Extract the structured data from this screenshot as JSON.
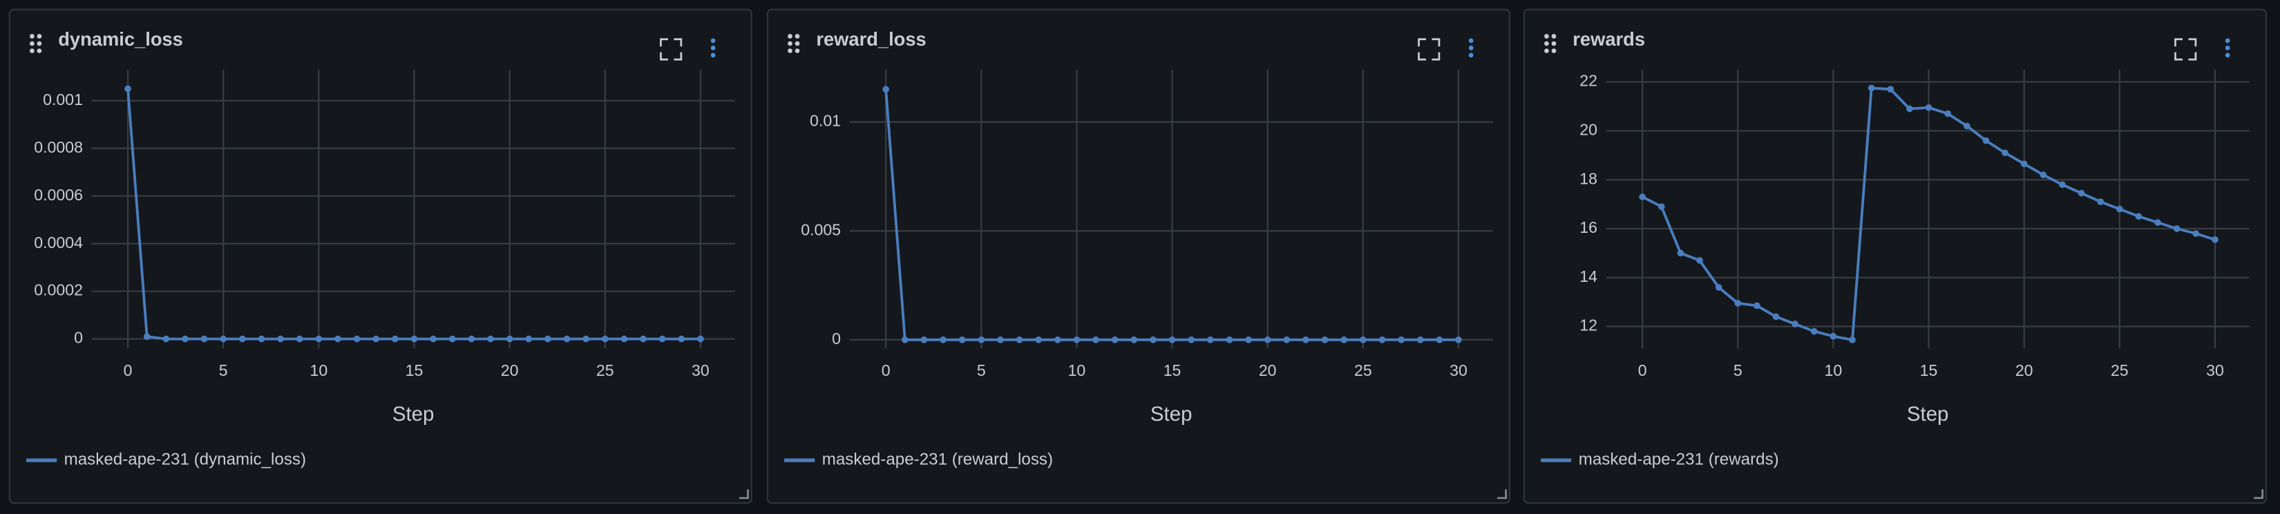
{
  "chart_data": [
    {
      "type": "line",
      "title": "dynamic_loss",
      "x_label": "Step",
      "x": [
        0,
        1,
        2,
        3,
        4,
        5,
        6,
        7,
        8,
        9,
        10,
        11,
        12,
        13,
        14,
        15,
        16,
        17,
        18,
        19,
        20,
        21,
        22,
        23,
        24,
        25,
        26,
        27,
        28,
        29,
        30
      ],
      "series": [
        {
          "name": "masked-ape-231 (dynamic_loss)",
          "color": "#4a7ebf",
          "values": [
            0.00105,
            1e-05,
            0,
            0,
            0,
            0,
            0,
            0,
            0,
            0,
            0,
            0,
            0,
            0,
            0,
            0,
            0,
            0,
            0,
            0,
            0,
            0,
            0,
            0,
            0,
            0,
            0,
            0,
            0,
            0,
            0
          ]
        }
      ],
      "xlim": [
        -1.9,
        31.8
      ],
      "ylim": [
        -4e-05,
        0.00113
      ],
      "xticks": [
        0,
        5,
        10,
        15,
        20,
        25,
        30
      ],
      "yticks": [
        0,
        0.0002,
        0.0004,
        0.0006,
        0.0008,
        0.001
      ],
      "grid": true
    },
    {
      "type": "line",
      "title": "reward_loss",
      "x_label": "Step",
      "x": [
        0,
        1,
        2,
        3,
        4,
        5,
        6,
        7,
        8,
        9,
        10,
        11,
        12,
        13,
        14,
        15,
        16,
        17,
        18,
        19,
        20,
        21,
        22,
        23,
        24,
        25,
        26,
        27,
        28,
        29,
        30
      ],
      "series": [
        {
          "name": "masked-ape-231 (reward_loss)",
          "color": "#4a7ebf",
          "values": [
            0.0115,
            0,
            0,
            0,
            0,
            0,
            0,
            0,
            0,
            0,
            0,
            0,
            0,
            0,
            0,
            0,
            0,
            0,
            0,
            0,
            0,
            0,
            0,
            0,
            0,
            0,
            0,
            0,
            0,
            0,
            0
          ]
        }
      ],
      "xlim": [
        -1.9,
        31.8
      ],
      "ylim": [
        -0.0004,
        0.0124
      ],
      "xticks": [
        0,
        5,
        10,
        15,
        20,
        25,
        30
      ],
      "yticks": [
        0,
        0.005,
        0.01
      ],
      "grid": true
    },
    {
      "type": "line",
      "title": "rewards",
      "x_label": "Step",
      "x": [
        0,
        1,
        2,
        3,
        4,
        5,
        6,
        7,
        8,
        9,
        10,
        11,
        12,
        13,
        14,
        15,
        16,
        17,
        18,
        19,
        20,
        21,
        22,
        23,
        24,
        25,
        26,
        27,
        28,
        29,
        30
      ],
      "series": [
        {
          "name": "masked-ape-231 (rewards)",
          "color": "#4a7ebf",
          "values": [
            17.3,
            16.9,
            15.0,
            14.7,
            13.6,
            12.95,
            12.85,
            12.4,
            12.1,
            11.8,
            11.6,
            11.45,
            21.75,
            21.7,
            20.9,
            20.95,
            20.7,
            20.2,
            19.6,
            19.1,
            18.65,
            18.2,
            17.8,
            17.45,
            17.1,
            16.8,
            16.5,
            16.25,
            16.0,
            15.8,
            15.55
          ]
        }
      ],
      "xlim": [
        -1.9,
        31.8
      ],
      "ylim": [
        11.1,
        22.5
      ],
      "xticks": [
        0,
        5,
        10,
        15,
        20,
        25,
        30
      ],
      "yticks": [
        12,
        14,
        16,
        18,
        20,
        22
      ],
      "grid": true
    }
  ]
}
